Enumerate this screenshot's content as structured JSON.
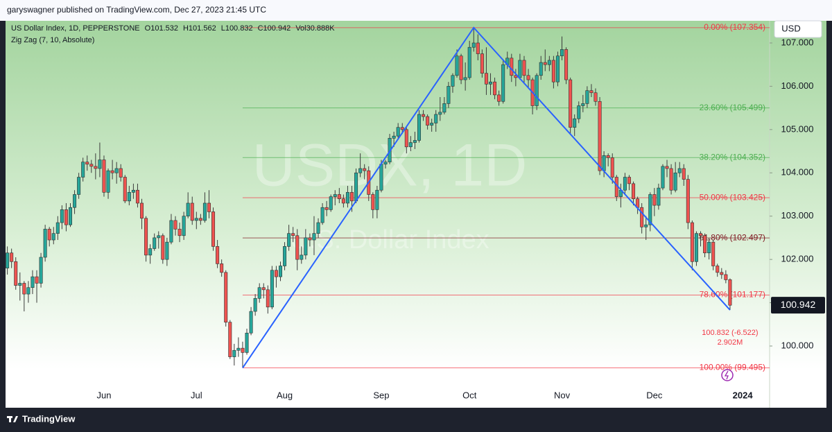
{
  "header": {
    "publisher": "garyswagner published on TradingView.com, Dec 27, 2023 21:45 UTC",
    "brand": "TradingView"
  },
  "chart_data": {
    "type": "candlestick",
    "legend": {
      "name": "US Dollar Index, 1D, PEPPERSTONE",
      "values": [
        "O101.532",
        "H101.562",
        "L100.832",
        "C100.942",
        "Vol30.888K"
      ]
    },
    "watermark": [
      "USDX, 1D",
      "U.S. Dollar Index"
    ],
    "currency": "USD",
    "up_color": "#26a69a",
    "down_color": "#ef5350",
    "ylim": [
      99.103,
      107.512
    ],
    "yticks": [
      {
        "value": 100,
        "label": "100.000"
      },
      {
        "value": 101,
        "label": "101.000"
      },
      {
        "value": 102,
        "label": "102.000"
      },
      {
        "value": 103,
        "label": "103.000"
      },
      {
        "value": 104,
        "label": "104.000"
      },
      {
        "value": 105,
        "label": "105.000"
      },
      {
        "value": 106,
        "label": "106.000"
      },
      {
        "value": 107,
        "label": "107.000"
      }
    ],
    "xlabels": [
      {
        "label": "Jun",
        "index": 23
      },
      {
        "label": "Jul",
        "index": 45
      },
      {
        "label": "Aug",
        "index": 66
      },
      {
        "label": "Sep",
        "index": 89
      },
      {
        "label": "Oct",
        "index": 110
      },
      {
        "label": "Nov",
        "index": 132
      },
      {
        "label": "Dec",
        "index": 154
      },
      {
        "label": "2024",
        "index": 175
      }
    ],
    "zigzag": {
      "label": "Zig Zag (7, 10, Absolute)",
      "color": "#2962ff",
      "pivots": [
        56,
        111,
        172
      ]
    },
    "fib": {
      "start": 56,
      "levels": [
        {
          "value": 107.354,
          "label": "0.00% (107.354)",
          "color": "#f23645"
        },
        {
          "value": 105.499,
          "label": "23.60% (105.499)",
          "color": "#4caf50"
        },
        {
          "value": 104.352,
          "label": "38.20% (104.352)",
          "color": "#4caf50"
        },
        {
          "value": 103.425,
          "label": "50.00% (103.425)",
          "color": "#f23645"
        },
        {
          "value": 102.497,
          "label": "61.80% (102.497)",
          "color": "#801922"
        },
        {
          "value": 101.177,
          "label": "78.60% (101.177)",
          "color": "#f23645"
        },
        {
          "value": 99.495,
          "label": "100.00% (99.495)",
          "color": "#f23645"
        }
      ]
    },
    "annotations": [
      "100.832 (-6.522)",
      "2.902M"
    ],
    "ohlc": [
      [
        101.8,
        102.3,
        101.65,
        102.15
      ],
      [
        102.15,
        102.25,
        101.8,
        101.95
      ],
      [
        101.95,
        102.05,
        101.3,
        101.4
      ],
      [
        101.4,
        101.7,
        101.05,
        101.45
      ],
      [
        101.45,
        101.5,
        100.8,
        101.2
      ],
      [
        101.2,
        101.5,
        101.0,
        101.35
      ],
      [
        101.35,
        101.75,
        101.2,
        101.6
      ],
      [
        101.6,
        101.75,
        101.0,
        101.45
      ],
      [
        101.45,
        102.15,
        101.35,
        102.05
      ],
      [
        102.05,
        102.8,
        101.95,
        102.7
      ],
      [
        102.7,
        102.75,
        102.3,
        102.45
      ],
      [
        102.45,
        102.75,
        102.35,
        102.6
      ],
      [
        102.6,
        103.0,
        102.45,
        102.85
      ],
      [
        102.85,
        103.25,
        102.7,
        103.15
      ],
      [
        103.15,
        103.3,
        102.65,
        102.8
      ],
      [
        102.8,
        103.3,
        102.75,
        103.2
      ],
      [
        103.2,
        103.6,
        103.05,
        103.5
      ],
      [
        103.5,
        104.0,
        103.4,
        103.9
      ],
      [
        103.9,
        104.35,
        103.8,
        104.25
      ],
      [
        104.25,
        104.4,
        104.05,
        104.2
      ],
      [
        104.2,
        104.3,
        104.0,
        104.15
      ],
      [
        104.15,
        104.45,
        103.85,
        104.1
      ],
      [
        104.1,
        104.7,
        103.9,
        104.3
      ],
      [
        104.3,
        104.4,
        103.45,
        103.55
      ],
      [
        103.55,
        104.1,
        103.4,
        104.05
      ],
      [
        104.05,
        104.3,
        103.85,
        104.0
      ],
      [
        104.0,
        104.25,
        103.75,
        104.1
      ],
      [
        104.1,
        104.2,
        103.8,
        103.9
      ],
      [
        103.9,
        103.95,
        103.3,
        103.35
      ],
      [
        103.35,
        103.7,
        103.25,
        103.55
      ],
      [
        103.55,
        103.75,
        103.4,
        103.6
      ],
      [
        103.6,
        103.75,
        103.2,
        103.3
      ],
      [
        103.3,
        103.4,
        102.7,
        102.95
      ],
      [
        102.95,
        103.0,
        101.95,
        102.1
      ],
      [
        102.1,
        102.35,
        101.9,
        102.25
      ],
      [
        102.25,
        102.6,
        102.2,
        102.5
      ],
      [
        102.5,
        102.65,
        102.25,
        102.55
      ],
      [
        102.55,
        102.6,
        101.9,
        102.0
      ],
      [
        102.0,
        102.5,
        101.85,
        102.4
      ],
      [
        102.4,
        103.05,
        102.35,
        102.9
      ],
      [
        102.9,
        103.0,
        102.55,
        102.7
      ],
      [
        102.7,
        102.85,
        102.4,
        102.55
      ],
      [
        102.55,
        103.1,
        102.45,
        103.0
      ],
      [
        103.0,
        103.55,
        102.95,
        103.3
      ],
      [
        103.3,
        103.45,
        102.8,
        102.9
      ],
      [
        102.9,
        103.1,
        102.7,
        102.95
      ],
      [
        102.95,
        103.05,
        102.8,
        102.9
      ],
      [
        102.9,
        103.55,
        102.85,
        103.3
      ],
      [
        103.3,
        103.6,
        102.95,
        103.1
      ],
      [
        103.1,
        103.2,
        102.2,
        102.3
      ],
      [
        102.3,
        102.45,
        101.8,
        101.9
      ],
      [
        101.9,
        102.0,
        101.6,
        101.7
      ],
      [
        101.7,
        101.75,
        100.45,
        100.55
      ],
      [
        100.55,
        100.6,
        99.7,
        99.75
      ],
      [
        99.75,
        100.05,
        99.55,
        99.9
      ],
      [
        99.9,
        100.2,
        99.75,
        99.95
      ],
      [
        99.95,
        100.1,
        99.495,
        99.85
      ],
      [
        99.85,
        100.4,
        99.8,
        100.3
      ],
      [
        100.3,
        100.9,
        100.25,
        100.8
      ],
      [
        100.8,
        101.2,
        100.7,
        101.1
      ],
      [
        101.1,
        101.45,
        101.0,
        101.35
      ],
      [
        101.35,
        101.45,
        101.1,
        101.3
      ],
      [
        101.3,
        101.4,
        100.75,
        100.9
      ],
      [
        100.9,
        101.85,
        100.85,
        101.75
      ],
      [
        101.75,
        101.85,
        101.35,
        101.6
      ],
      [
        101.6,
        101.95,
        101.5,
        101.85
      ],
      [
        101.85,
        102.4,
        101.75,
        102.3
      ],
      [
        102.3,
        102.8,
        102.2,
        102.6
      ],
      [
        102.6,
        102.75,
        102.4,
        102.55
      ],
      [
        102.55,
        102.7,
        101.75,
        102.0
      ],
      [
        102.0,
        102.3,
        101.9,
        102.1
      ],
      [
        102.1,
        102.7,
        102.0,
        102.5
      ],
      [
        102.5,
        102.6,
        102.3,
        102.45
      ],
      [
        102.45,
        103.0,
        102.1,
        102.6
      ],
      [
        102.6,
        102.95,
        102.5,
        102.85
      ],
      [
        102.85,
        103.3,
        102.8,
        103.2
      ],
      [
        103.2,
        103.35,
        103.0,
        103.15
      ],
      [
        103.15,
        103.5,
        103.1,
        103.45
      ],
      [
        103.45,
        103.6,
        103.25,
        103.5
      ],
      [
        103.5,
        103.65,
        103.3,
        103.4
      ],
      [
        103.4,
        103.5,
        103.2,
        103.3
      ],
      [
        103.3,
        103.7,
        103.2,
        103.55
      ],
      [
        103.55,
        103.7,
        103.1,
        103.35
      ],
      [
        103.35,
        104.1,
        103.3,
        104.0
      ],
      [
        104.0,
        104.45,
        103.9,
        104.1
      ],
      [
        104.1,
        104.2,
        103.85,
        104.05
      ],
      [
        104.05,
        104.15,
        103.35,
        103.5
      ],
      [
        103.5,
        103.55,
        102.95,
        103.15
      ],
      [
        103.15,
        103.7,
        102.95,
        103.6
      ],
      [
        103.6,
        104.3,
        103.55,
        104.2
      ],
      [
        104.2,
        104.3,
        104.1,
        104.25
      ],
      [
        104.25,
        104.9,
        104.2,
        104.8
      ],
      [
        104.8,
        104.95,
        104.6,
        104.85
      ],
      [
        104.85,
        105.15,
        104.8,
        105.05
      ],
      [
        105.05,
        105.15,
        104.9,
        105.0
      ],
      [
        105.0,
        105.05,
        104.45,
        104.6
      ],
      [
        104.6,
        104.85,
        104.5,
        104.7
      ],
      [
        104.7,
        104.95,
        104.55,
        104.75
      ],
      [
        104.75,
        105.45,
        104.7,
        105.35
      ],
      [
        105.35,
        105.45,
        105.2,
        105.3
      ],
      [
        105.3,
        105.35,
        105.0,
        105.1
      ],
      [
        105.1,
        105.25,
        104.95,
        105.15
      ],
      [
        105.15,
        105.45,
        104.95,
        105.35
      ],
      [
        105.35,
        105.75,
        105.2,
        105.4
      ],
      [
        105.4,
        105.75,
        105.35,
        105.6
      ],
      [
        105.6,
        106.1,
        105.5,
        106.0
      ],
      [
        106.0,
        106.3,
        105.85,
        106.25
      ],
      [
        106.25,
        106.85,
        106.2,
        106.7
      ],
      [
        106.7,
        106.75,
        106.05,
        106.15
      ],
      [
        106.15,
        106.55,
        105.9,
        106.2
      ],
      [
        106.2,
        107.05,
        106.15,
        106.9
      ],
      [
        106.9,
        107.354,
        106.8,
        107.0
      ],
      [
        107.0,
        107.2,
        106.6,
        106.75
      ],
      [
        106.75,
        106.85,
        106.2,
        106.3
      ],
      [
        106.3,
        106.9,
        105.8,
        106.05
      ],
      [
        106.05,
        106.3,
        105.8,
        106.1
      ],
      [
        106.1,
        106.2,
        105.7,
        105.8
      ],
      [
        105.8,
        105.9,
        105.55,
        105.65
      ],
      [
        105.65,
        106.6,
        105.6,
        106.5
      ],
      [
        106.5,
        106.8,
        106.4,
        106.65
      ],
      [
        106.65,
        106.75,
        106.1,
        106.25
      ],
      [
        106.25,
        106.4,
        106.0,
        106.2
      ],
      [
        106.2,
        106.75,
        106.15,
        106.6
      ],
      [
        106.6,
        106.7,
        106.05,
        106.25
      ],
      [
        106.25,
        106.4,
        105.95,
        106.15
      ],
      [
        106.15,
        106.2,
        105.35,
        105.55
      ],
      [
        105.55,
        106.3,
        105.45,
        106.25
      ],
      [
        106.25,
        106.7,
        106.15,
        106.55
      ],
      [
        106.55,
        106.85,
        106.35,
        106.5
      ],
      [
        106.5,
        106.7,
        106.35,
        106.6
      ],
      [
        106.6,
        106.7,
        105.95,
        106.1
      ],
      [
        106.1,
        106.8,
        106.0,
        106.7
      ],
      [
        106.7,
        107.15,
        106.6,
        106.85
      ],
      [
        106.85,
        106.9,
        106.05,
        106.15
      ],
      [
        106.15,
        106.2,
        104.9,
        105.05
      ],
      [
        105.05,
        105.35,
        104.85,
        105.25
      ],
      [
        105.25,
        105.65,
        105.15,
        105.55
      ],
      [
        105.55,
        105.8,
        105.4,
        105.6
      ],
      [
        105.6,
        106.0,
        105.5,
        105.9
      ],
      [
        105.9,
        106.05,
        105.75,
        105.85
      ],
      [
        105.85,
        105.95,
        105.55,
        105.65
      ],
      [
        105.65,
        105.75,
        103.95,
        104.05
      ],
      [
        104.05,
        104.5,
        103.9,
        104.4
      ],
      [
        104.4,
        104.45,
        104.15,
        104.35
      ],
      [
        104.35,
        104.45,
        103.75,
        103.9
      ],
      [
        103.9,
        103.95,
        103.35,
        103.45
      ],
      [
        103.45,
        103.75,
        103.2,
        103.6
      ],
      [
        103.6,
        104.0,
        103.5,
        103.9
      ],
      [
        103.9,
        103.95,
        103.6,
        103.75
      ],
      [
        103.75,
        103.8,
        103.25,
        103.4
      ],
      [
        103.4,
        103.45,
        103.05,
        103.2
      ],
      [
        103.2,
        103.3,
        102.6,
        102.75
      ],
      [
        102.75,
        103.0,
        102.45,
        102.8
      ],
      [
        102.8,
        103.55,
        102.65,
        103.5
      ],
      [
        103.5,
        103.65,
        103.0,
        103.25
      ],
      [
        103.25,
        103.75,
        103.15,
        103.65
      ],
      [
        103.65,
        104.2,
        103.6,
        104.15
      ],
      [
        104.15,
        104.3,
        103.9,
        104.1
      ],
      [
        104.1,
        104.2,
        103.5,
        103.6
      ],
      [
        103.6,
        104.25,
        103.55,
        104.0
      ],
      [
        104.0,
        104.25,
        103.9,
        104.1
      ],
      [
        104.1,
        104.2,
        103.7,
        103.85
      ],
      [
        103.85,
        103.95,
        102.7,
        102.85
      ],
      [
        102.85,
        102.9,
        101.75,
        101.95
      ],
      [
        101.95,
        102.65,
        101.85,
        102.6
      ],
      [
        102.6,
        102.65,
        102.3,
        102.55
      ],
      [
        102.55,
        102.6,
        102.05,
        102.15
      ],
      [
        102.15,
        102.5,
        102.0,
        102.4
      ],
      [
        102.4,
        102.45,
        101.75,
        101.85
      ],
      [
        101.85,
        101.9,
        101.6,
        101.7
      ],
      [
        101.7,
        101.8,
        101.55,
        101.65
      ],
      [
        101.65,
        101.75,
        101.45,
        101.53
      ],
      [
        101.532,
        101.562,
        100.832,
        100.942
      ]
    ]
  }
}
